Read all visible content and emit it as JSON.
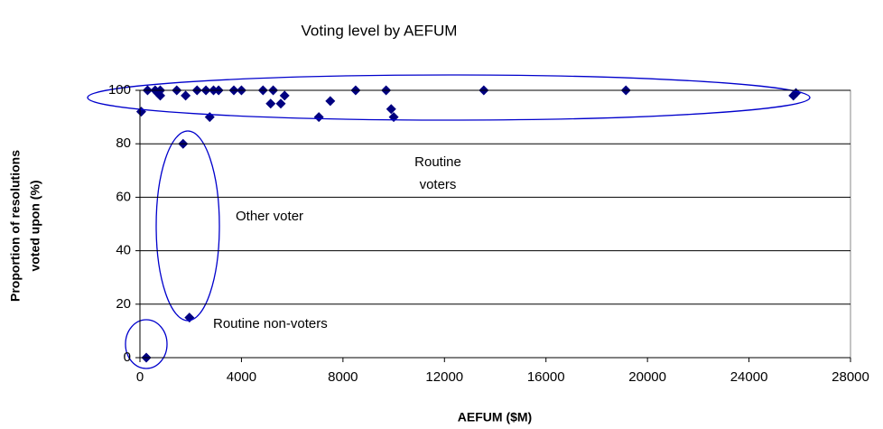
{
  "chart_data": {
    "type": "scatter",
    "title": "Voting level by AEFUM",
    "x_label": "AEFUM ($M)",
    "y_label": [
      "Proportion of resolutions",
      "voted upon (%)"
    ],
    "color": "#000080",
    "x": [
      50,
      300,
      600,
      800,
      700,
      800,
      1450,
      1800,
      2250,
      2600,
      2750,
      2900,
      3100,
      3700,
      4000,
      4850,
      5250,
      5150,
      5550,
      5700,
      7050,
      7500,
      8500,
      9700,
      9900,
      10000,
      13550,
      19150,
      25850,
      25750,
      1700,
      1950,
      250
    ],
    "values": [
      92,
      100,
      100,
      100,
      99,
      98,
      100,
      98,
      100,
      100,
      90,
      100,
      100,
      100,
      100,
      100,
      100,
      95,
      95,
      98,
      90,
      96,
      100,
      100,
      93,
      90,
      100,
      100,
      99,
      98,
      80,
      15,
      0
    ],
    "xlim": [
      0,
      28000
    ],
    "xticks": [
      0,
      4000,
      8000,
      12000,
      16000,
      20000,
      24000,
      28000
    ],
    "ylim": [
      0,
      100
    ],
    "yticks": [
      0,
      20,
      40,
      60,
      80,
      100
    ],
    "grid": true,
    "annotations": [
      [
        "Routine",
        "voters"
      ],
      [
        "Other voter"
      ],
      [
        "Routine non-voters"
      ]
    ]
  }
}
